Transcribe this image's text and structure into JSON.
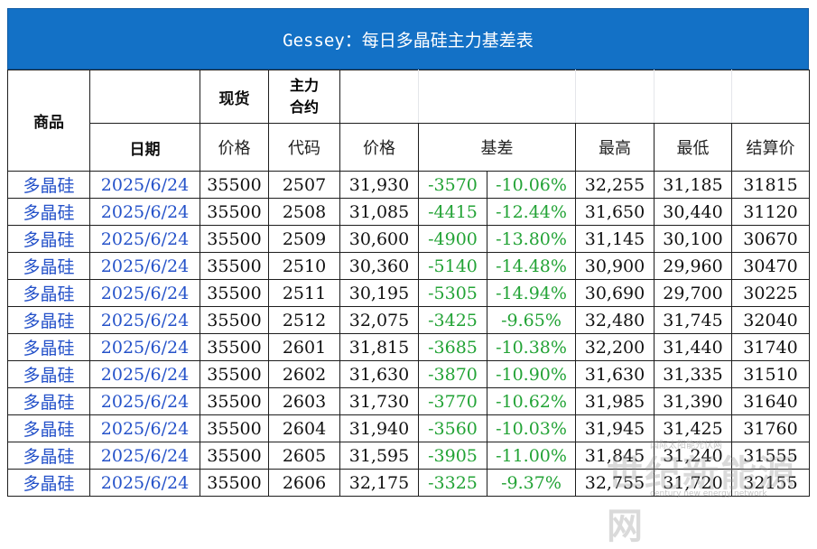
{
  "title": "Gessey：每日多晶硅主力基差表",
  "headers": {
    "product": "商品",
    "date": "日期",
    "spot": "现货",
    "contract": "主力\n合约",
    "contract_l1": "主力",
    "contract_l2": "合约",
    "price": "价格",
    "code": "代码",
    "futures_price": "价格",
    "basis": "基差",
    "high": "最高",
    "low": "最低",
    "settle": "结算价"
  },
  "rows": [
    {
      "product": "多晶硅",
      "date": "2025/6/24",
      "spot": "35500",
      "code": "2507",
      "price": "31,930",
      "basis": "-3570",
      "basis_pct": "-10.06%",
      "high": "32,255",
      "low": "31,185",
      "settle": "31815"
    },
    {
      "product": "多晶硅",
      "date": "2025/6/24",
      "spot": "35500",
      "code": "2508",
      "price": "31,085",
      "basis": "-4415",
      "basis_pct": "-12.44%",
      "high": "31,650",
      "low": "30,440",
      "settle": "31120"
    },
    {
      "product": "多晶硅",
      "date": "2025/6/24",
      "spot": "35500",
      "code": "2509",
      "price": "30,600",
      "basis": "-4900",
      "basis_pct": "-13.80%",
      "high": "31,145",
      "low": "30,100",
      "settle": "30670"
    },
    {
      "product": "多晶硅",
      "date": "2025/6/24",
      "spot": "35500",
      "code": "2510",
      "price": "30,360",
      "basis": "-5140",
      "basis_pct": "-14.48%",
      "high": "30,900",
      "low": "29,960",
      "settle": "30470"
    },
    {
      "product": "多晶硅",
      "date": "2025/6/24",
      "spot": "35500",
      "code": "2511",
      "price": "30,195",
      "basis": "-5305",
      "basis_pct": "-14.94%",
      "high": "30,690",
      "low": "29,700",
      "settle": "30225"
    },
    {
      "product": "多晶硅",
      "date": "2025/6/24",
      "spot": "35500",
      "code": "2512",
      "price": "32,075",
      "basis": "-3425",
      "basis_pct": "-9.65%",
      "high": "32,480",
      "low": "31,745",
      "settle": "32040"
    },
    {
      "product": "多晶硅",
      "date": "2025/6/24",
      "spot": "35500",
      "code": "2601",
      "price": "31,815",
      "basis": "-3685",
      "basis_pct": "-10.38%",
      "high": "32,200",
      "low": "31,440",
      "settle": "31740"
    },
    {
      "product": "多晶硅",
      "date": "2025/6/24",
      "spot": "35500",
      "code": "2602",
      "price": "31,630",
      "basis": "-3870",
      "basis_pct": "-10.90%",
      "high": "31,630",
      "low": "31,335",
      "settle": "31510"
    },
    {
      "product": "多晶硅",
      "date": "2025/6/24",
      "spot": "35500",
      "code": "2603",
      "price": "31,730",
      "basis": "-3770",
      "basis_pct": "-10.62%",
      "high": "31,985",
      "low": "31,390",
      "settle": "31640"
    },
    {
      "product": "多晶硅",
      "date": "2025/6/24",
      "spot": "35500",
      "code": "2604",
      "price": "31,940",
      "basis": "-3560",
      "basis_pct": "-10.03%",
      "high": "31,945",
      "low": "31,425",
      "settle": "31760"
    },
    {
      "product": "多晶硅",
      "date": "2025/6/24",
      "spot": "35500",
      "code": "2605",
      "price": "31,595",
      "basis": "-3905",
      "basis_pct": "-11.00%",
      "high": "31,845",
      "low": "31,240",
      "settle": "31555"
    },
    {
      "product": "多晶硅",
      "date": "2025/6/24",
      "spot": "35500",
      "code": "2606",
      "price": "32,175",
      "basis": "-3325",
      "basis_pct": "-9.37%",
      "high": "32,755",
      "low": "31,720",
      "settle": "32155"
    }
  ],
  "watermark": {
    "line1": "国际太阳能光伏网",
    "line2": "世纪新能源网",
    "line3": "century new energy network"
  },
  "colors": {
    "title_bg": "#1371c6",
    "link_blue": "#2552c9",
    "basis_green": "#23a336"
  }
}
